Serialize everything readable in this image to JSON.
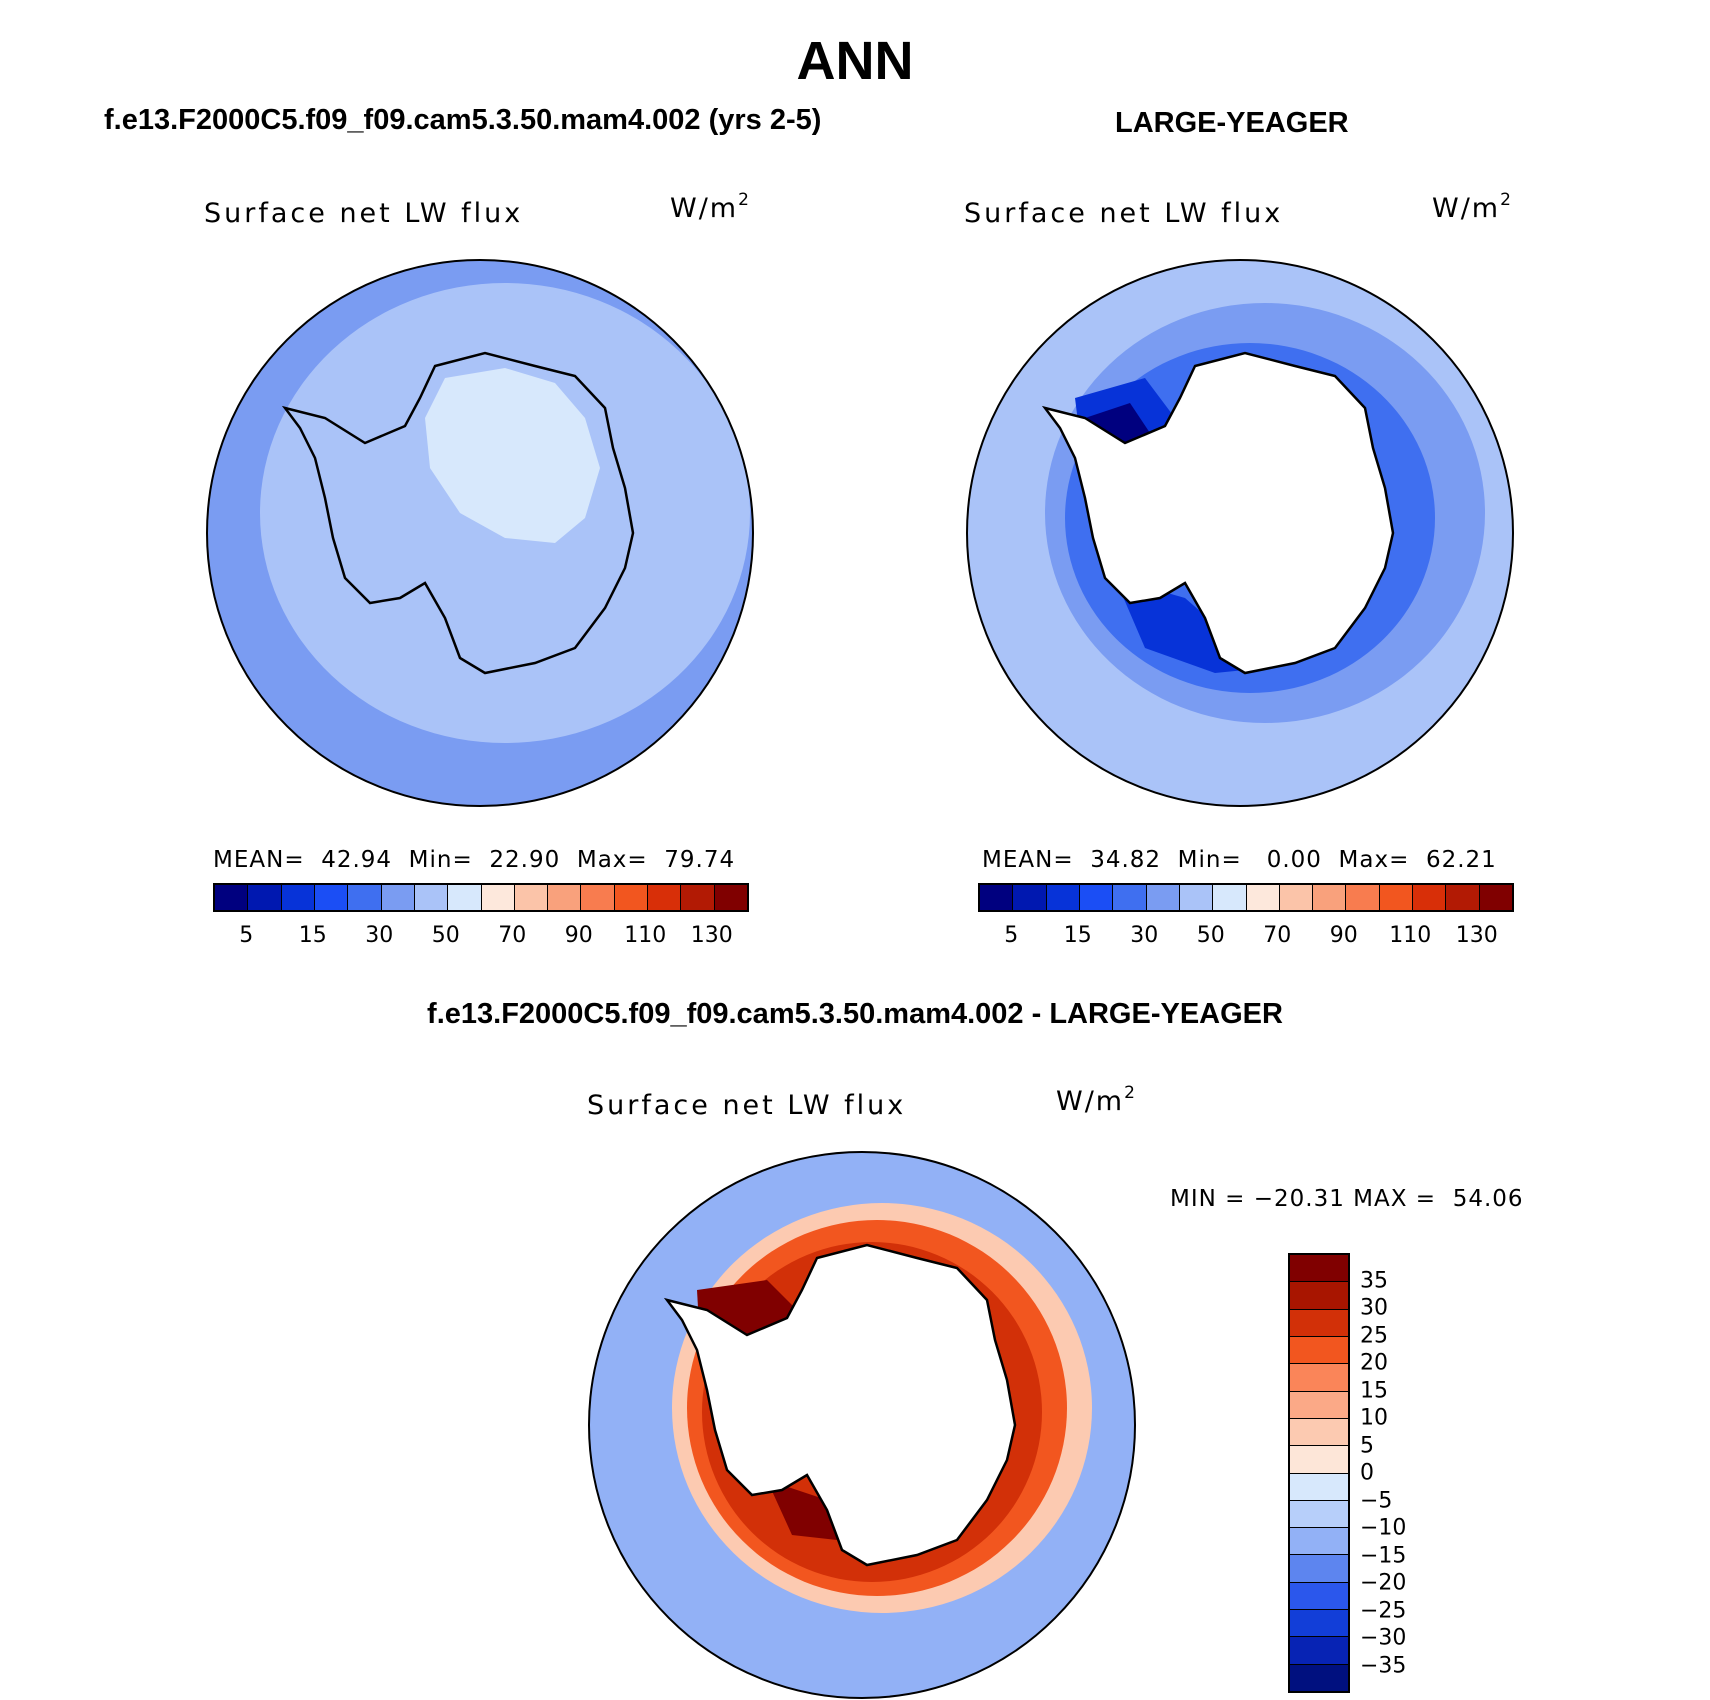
{
  "title": "ANN",
  "panels": {
    "left": {
      "title": "f.e13.F2000C5.f09_f09.cam5.3.50.mam4.002 (yrs 2-5)",
      "label": "Surface net LW flux",
      "units": "W/m",
      "units_sup": "2",
      "stats": "MEAN=  42.94  Min=  22.90  Max=  79.74"
    },
    "right": {
      "title": "LARGE-YEAGER",
      "label": "Surface net LW flux",
      "units": "W/m",
      "units_sup": "2",
      "stats": "MEAN=  34.82  Min=   0.00  Max=  62.21"
    },
    "diff": {
      "title": "f.e13.F2000C5.f09_f09.cam5.3.50.mam4.002 - LARGE-YEAGER",
      "label": "Surface net LW flux",
      "units": "W/m",
      "units_sup": "2",
      "stats": "MIN = −20.31 MAX =  54.06"
    }
  },
  "colorbar_abs": {
    "colors": [
      "#00007f",
      "#0018b0",
      "#0733d8",
      "#1b4ef5",
      "#3f6ff0",
      "#7a9cf2",
      "#aac3f8",
      "#d7e8fc",
      "#fde8dc",
      "#fbc4a9",
      "#f9a17c",
      "#f87c4f",
      "#f2561f",
      "#d82f08",
      "#b21a04",
      "#800000"
    ],
    "tick_labels": [
      "5",
      "15",
      "30",
      "50",
      "70",
      "90",
      "110",
      "130"
    ]
  },
  "colorbar_diff": {
    "colors": [
      "#800000",
      "#a81500",
      "#d23008",
      "#f2561f",
      "#fa8559",
      "#fba987",
      "#fccab1",
      "#fde6d8",
      "#d7e8fc",
      "#b7cffa",
      "#92b1f6",
      "#5d85ef",
      "#2b57ec",
      "#123ed8",
      "#0723b4",
      "#00107f"
    ],
    "tick_labels": [
      "35",
      "30",
      "25",
      "20",
      "15",
      "10",
      "5",
      "0",
      "−5",
      "−10",
      "−15",
      "−20",
      "−25",
      "−30",
      "−35"
    ]
  },
  "map_colors": {
    "ocean_left": "#7a9cf2",
    "ice_left": "#aac3f8",
    "inner_left": "#d7e8fc",
    "land_blank": "#ffffff",
    "right_outer": "#aac3f8",
    "right_mid": "#3f6ff0",
    "right_deep": "#0733d8",
    "diff_outer": "#92b1f6",
    "diff_ring1": "#fccab1",
    "diff_ring2": "#f2561f",
    "diff_ring3": "#d23008",
    "diff_ring4": "#800000"
  }
}
